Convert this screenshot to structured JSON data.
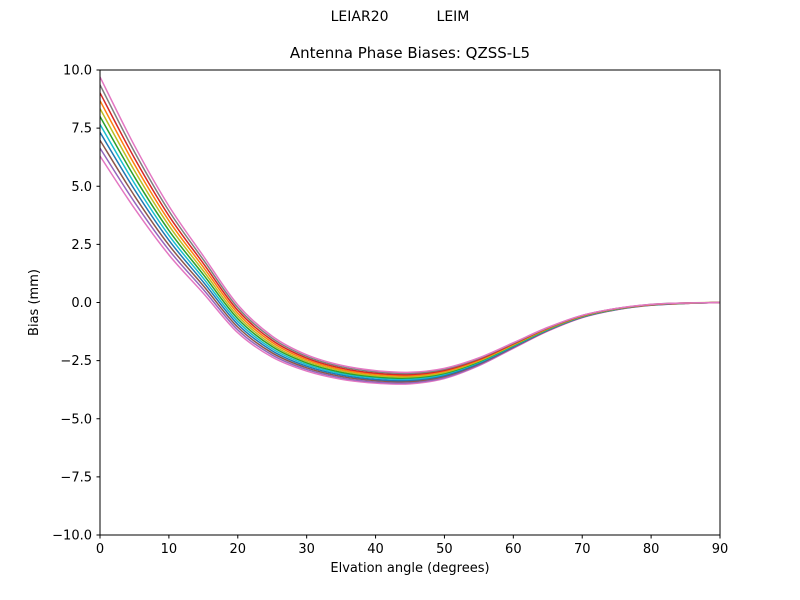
{
  "figure": {
    "suptitle_left": "LEIAR20",
    "suptitle_right": "LEIM"
  },
  "chart_data": {
    "type": "line",
    "title": "Antenna Phase Biases: QZSS-L5",
    "suptitle": "LEIAR20        LEIM",
    "xlabel": "Elvation angle (degrees)",
    "ylabel": "Bias (mm)",
    "xlim": [
      0,
      90
    ],
    "ylim": [
      -10.0,
      10.0
    ],
    "xticks": [
      0,
      10,
      20,
      30,
      40,
      50,
      60,
      70,
      80,
      90
    ],
    "yticks": [
      -10.0,
      -7.5,
      -5.0,
      -2.5,
      0.0,
      2.5,
      5.0,
      7.5,
      10.0
    ],
    "grid": false,
    "legend": "none",
    "x": [
      0,
      5,
      10,
      15,
      20,
      25,
      30,
      35,
      40,
      45,
      50,
      55,
      60,
      65,
      70,
      75,
      80,
      85,
      90
    ],
    "series": [
      {
        "name": "line-01",
        "color": "#e377c2",
        "values": [
          6.3,
          4.05,
          2.05,
          0.4,
          -1.3,
          -2.35,
          -2.95,
          -3.3,
          -3.47,
          -3.5,
          -3.27,
          -2.72,
          -1.97,
          -1.23,
          -0.65,
          -0.31,
          -0.12,
          -0.04,
          0.0
        ]
      },
      {
        "name": "line-02",
        "color": "#9467bd",
        "values": [
          6.64,
          4.32,
          2.26,
          0.56,
          -1.18,
          -2.26,
          -2.88,
          -3.24,
          -3.42,
          -3.45,
          -3.23,
          -2.69,
          -1.95,
          -1.21,
          -0.64,
          -0.3,
          -0.12,
          -0.04,
          0.0
        ]
      },
      {
        "name": "line-03",
        "color": "#8c564b",
        "values": [
          6.98,
          4.59,
          2.47,
          0.72,
          -1.06,
          -2.17,
          -2.81,
          -3.18,
          -3.36,
          -3.4,
          -3.18,
          -2.65,
          -1.92,
          -1.2,
          -0.63,
          -0.3,
          -0.11,
          -0.04,
          0.0
        ]
      },
      {
        "name": "line-04",
        "color": "#1f77b4",
        "values": [
          7.32,
          4.86,
          2.68,
          0.88,
          -0.94,
          -2.08,
          -2.74,
          -3.12,
          -3.31,
          -3.35,
          -3.14,
          -2.62,
          -1.9,
          -1.18,
          -0.62,
          -0.29,
          -0.11,
          -0.03,
          0.0
        ]
      },
      {
        "name": "line-05",
        "color": "#17becf",
        "values": [
          7.66,
          5.13,
          2.89,
          1.04,
          -0.82,
          -1.99,
          -2.67,
          -3.06,
          -3.25,
          -3.3,
          -3.09,
          -2.58,
          -1.87,
          -1.17,
          -0.61,
          -0.29,
          -0.1,
          -0.03,
          0.0
        ]
      },
      {
        "name": "line-06",
        "color": "#2ca02c",
        "values": [
          8.0,
          5.4,
          3.1,
          1.2,
          -0.7,
          -1.9,
          -2.6,
          -3.0,
          -3.2,
          -3.25,
          -3.05,
          -2.55,
          -1.85,
          -1.15,
          -0.6,
          -0.28,
          -0.1,
          -0.03,
          0.0
        ]
      },
      {
        "name": "line-07",
        "color": "#bcbd22",
        "values": [
          8.34,
          5.67,
          3.31,
          1.36,
          -0.58,
          -1.81,
          -2.53,
          -2.94,
          -3.15,
          -3.2,
          -3.01,
          -2.52,
          -1.83,
          -1.13,
          -0.59,
          -0.27,
          -0.1,
          -0.02,
          0.0
        ]
      },
      {
        "name": "line-08",
        "color": "#ff7f0e",
        "values": [
          8.68,
          5.94,
          3.52,
          1.52,
          -0.46,
          -1.72,
          -2.46,
          -2.88,
          -3.09,
          -3.15,
          -2.96,
          -2.48,
          -1.8,
          -1.12,
          -0.58,
          -0.27,
          -0.09,
          -0.03,
          0.0
        ]
      },
      {
        "name": "line-09",
        "color": "#d62728",
        "values": [
          9.02,
          6.21,
          3.73,
          1.68,
          -0.34,
          -1.63,
          -2.39,
          -2.82,
          -3.04,
          -3.1,
          -2.92,
          -2.45,
          -1.78,
          -1.1,
          -0.57,
          -0.26,
          -0.09,
          -0.02,
          0.0
        ]
      },
      {
        "name": "line-10",
        "color": "#7f7f7f",
        "values": [
          9.36,
          6.48,
          3.94,
          1.84,
          -0.22,
          -1.54,
          -2.32,
          -2.76,
          -2.98,
          -3.05,
          -2.87,
          -2.41,
          -1.75,
          -1.09,
          -0.56,
          -0.26,
          -0.08,
          -0.02,
          0.0
        ]
      },
      {
        "name": "line-11",
        "color": "#e377c2",
        "values": [
          9.7,
          6.75,
          4.15,
          2.0,
          -0.1,
          -1.45,
          -2.25,
          -2.7,
          -2.93,
          -3.0,
          -2.83,
          -2.38,
          -1.73,
          -1.07,
          -0.55,
          -0.25,
          -0.08,
          -0.02,
          0.0
        ]
      }
    ]
  }
}
